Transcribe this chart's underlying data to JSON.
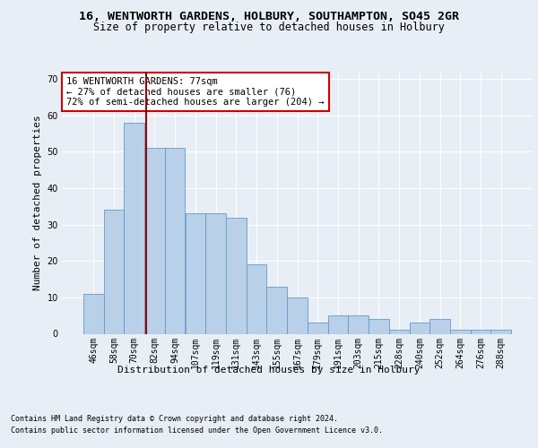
{
  "title1": "16, WENTWORTH GARDENS, HOLBURY, SOUTHAMPTON, SO45 2GR",
  "title2": "Size of property relative to detached houses in Holbury",
  "xlabel": "Distribution of detached houses by size in Holbury",
  "ylabel": "Number of detached properties",
  "categories": [
    "46sqm",
    "58sqm",
    "70sqm",
    "82sqm",
    "94sqm",
    "107sqm",
    "119sqm",
    "131sqm",
    "143sqm",
    "155sqm",
    "167sqm",
    "179sqm",
    "191sqm",
    "203sqm",
    "215sqm",
    "228sqm",
    "240sqm",
    "252sqm",
    "264sqm",
    "276sqm",
    "288sqm"
  ],
  "values": [
    11,
    34,
    58,
    51,
    51,
    33,
    33,
    32,
    19,
    13,
    10,
    3,
    5,
    5,
    4,
    1,
    3,
    4,
    1,
    1,
    1
  ],
  "bar_color": "#b8d0e8",
  "bar_edge_color": "#6699cc",
  "vline_color": "#990000",
  "vline_x": 2.58,
  "ylim": [
    0,
    72
  ],
  "yticks": [
    0,
    10,
    20,
    30,
    40,
    50,
    60,
    70
  ],
  "annotation_line1": "16 WENTWORTH GARDENS: 77sqm",
  "annotation_line2": "← 27% of detached houses are smaller (76)",
  "annotation_line3": "72% of semi-detached houses are larger (204) →",
  "annotation_box_color": "#ffffff",
  "annotation_box_edge": "#cc0000",
  "footnote1": "Contains HM Land Registry data © Crown copyright and database right 2024.",
  "footnote2": "Contains public sector information licensed under the Open Government Licence v3.0.",
  "background_color": "#e8eef5",
  "plot_background": "#e8eef5",
  "grid_color": "#ffffff",
  "title1_fontsize": 9.5,
  "title2_fontsize": 8.5,
  "tick_fontsize": 7,
  "ylabel_fontsize": 8,
  "xlabel_fontsize": 8,
  "annotation_fontsize": 7.5,
  "footnote_fontsize": 6
}
